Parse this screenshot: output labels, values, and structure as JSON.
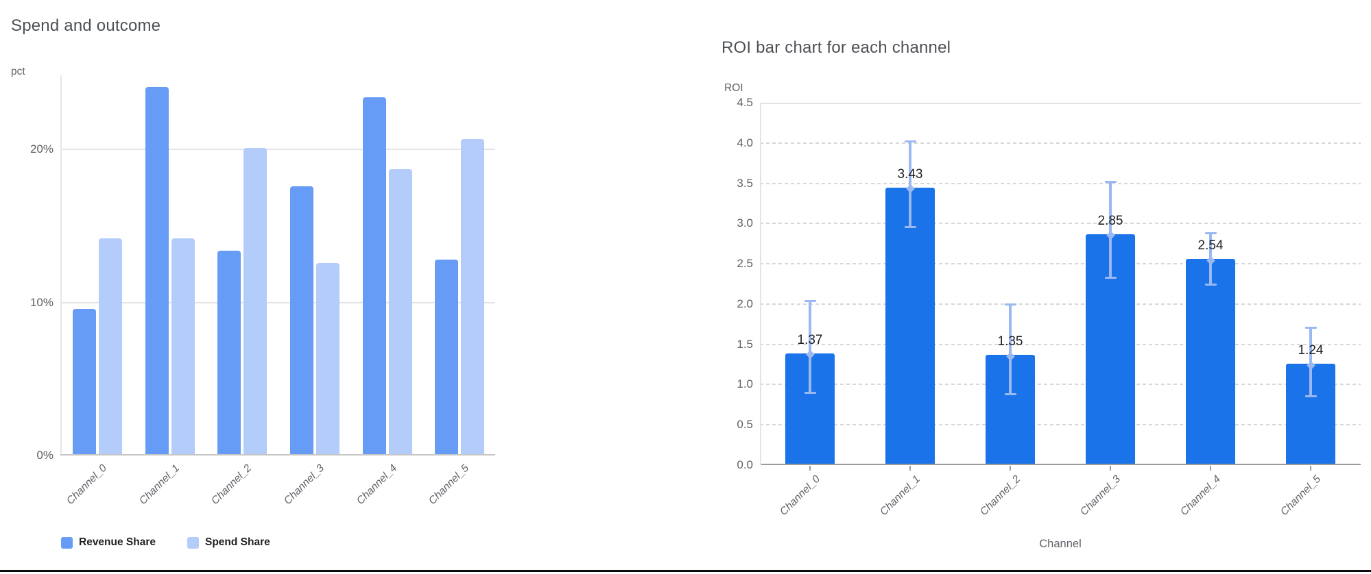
{
  "page": {
    "background": "#ffffff",
    "divider_color": "#0b0b0b"
  },
  "chart_data": [
    {
      "type": "bar",
      "title": "Spend and outcome",
      "ylabel": "pct",
      "xlabel": "",
      "categories": [
        "Channel_0",
        "Channel_1",
        "Channel_2",
        "Channel_3",
        "Channel_4",
        "Channel_5"
      ],
      "series": [
        {
          "name": "Revenue Share",
          "color": "#669CF5",
          "values": [
            9.5,
            24.0,
            13.3,
            17.5,
            23.3,
            12.7
          ]
        },
        {
          "name": "Spend Share",
          "color": "#B3CCFA",
          "values": [
            14.1,
            14.1,
            20.0,
            12.5,
            18.6,
            20.6
          ]
        }
      ],
      "unit": "%",
      "y_ticks": [
        {
          "v": 0,
          "label": "0%"
        },
        {
          "v": 10,
          "label": "10%"
        },
        {
          "v": 20,
          "label": "20%"
        }
      ],
      "ylim": [
        0,
        24.8
      ],
      "grid": "horizontal-solid",
      "legend_position": "bottom-left"
    },
    {
      "type": "bar",
      "title": "ROI bar chart for each channel",
      "ylabel": "ROI",
      "xlabel": "Channel",
      "categories": [
        "Channel_0",
        "Channel_1",
        "Channel_2",
        "Channel_3",
        "Channel_4",
        "Channel_5"
      ],
      "series": [
        {
          "name": "ROI",
          "color": "#1A73E8",
          "values": [
            1.37,
            3.43,
            1.35,
            2.85,
            2.54,
            1.24
          ],
          "error_low": [
            0.89,
            2.95,
            0.88,
            2.32,
            2.24,
            0.85
          ],
          "error_high": [
            2.04,
            4.02,
            2.0,
            3.52,
            2.88,
            1.71
          ],
          "error_color": "#9BB8F2"
        }
      ],
      "value_labels": [
        "1.37",
        "3.43",
        "1.35",
        "2.85",
        "2.54",
        "1.24"
      ],
      "y_ticks": [
        {
          "v": 0,
          "label": "0.0"
        },
        {
          "v": 0.5,
          "label": "0.5"
        },
        {
          "v": 1,
          "label": "1.0"
        },
        {
          "v": 1.5,
          "label": "1.5"
        },
        {
          "v": 2,
          "label": "2.0"
        },
        {
          "v": 2.5,
          "label": "2.5"
        },
        {
          "v": 3,
          "label": "3.0"
        },
        {
          "v": 3.5,
          "label": "3.5"
        },
        {
          "v": 4,
          "label": "4.0"
        },
        {
          "v": 4.5,
          "label": "4.5"
        }
      ],
      "ylim": [
        0,
        4.5
      ],
      "grid": "horizontal-dashed",
      "legend_position": "none"
    }
  ]
}
